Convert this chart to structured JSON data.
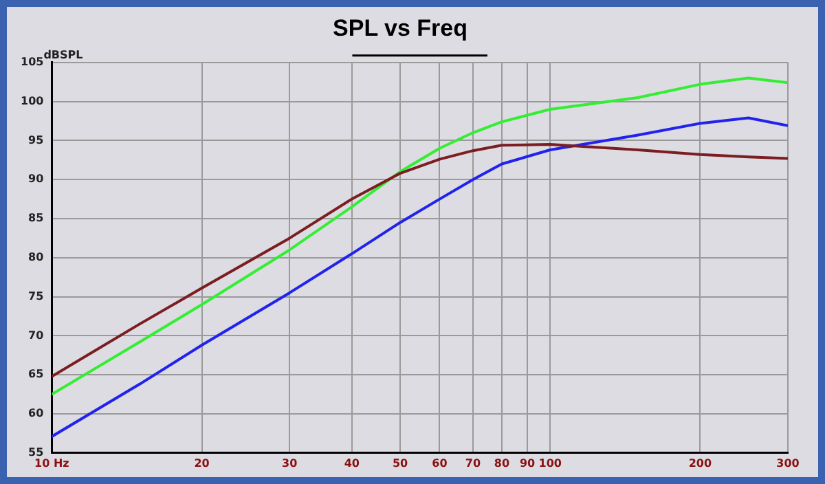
{
  "chart_data": {
    "type": "line",
    "title": "SPL vs Freq",
    "ylabel": "dBSPL",
    "log": "x",
    "grid": true,
    "legend": false,
    "marker": "none",
    "line_style": "solid",
    "xlim": [
      10,
      300
    ],
    "xticks": [
      {
        "value": 10,
        "label": "10 Hz"
      },
      20,
      30,
      40,
      50,
      60,
      70,
      80,
      90,
      100,
      200,
      300
    ],
    "ylim": [
      55,
      105
    ],
    "yticks": [
      55,
      60,
      65,
      70,
      75,
      80,
      85,
      90,
      95,
      100,
      105
    ],
    "x": [
      10,
      15,
      20,
      30,
      40,
      50,
      60,
      70,
      80,
      100,
      150,
      200,
      250,
      300
    ],
    "series": [
      {
        "color": "#7a1e22",
        "values": [
          64.8,
          71.5,
          76.1,
          82.5,
          87.5,
          90.8,
          92.6,
          93.7,
          94.4,
          94.5,
          93.8,
          93.2,
          92.9,
          92.7
        ]
      },
      {
        "color": "#33ee33",
        "values": [
          62.5,
          69.2,
          74.0,
          81.0,
          86.5,
          91.0,
          94.0,
          96.0,
          97.4,
          99.0,
          100.5,
          102.2,
          103.0,
          102.4
        ]
      },
      {
        "color": "#2222ee",
        "values": [
          57.1,
          63.8,
          68.8,
          75.5,
          80.5,
          84.5,
          87.5,
          90.0,
          92.0,
          93.8,
          95.7,
          97.2,
          97.9,
          96.9
        ]
      }
    ]
  }
}
